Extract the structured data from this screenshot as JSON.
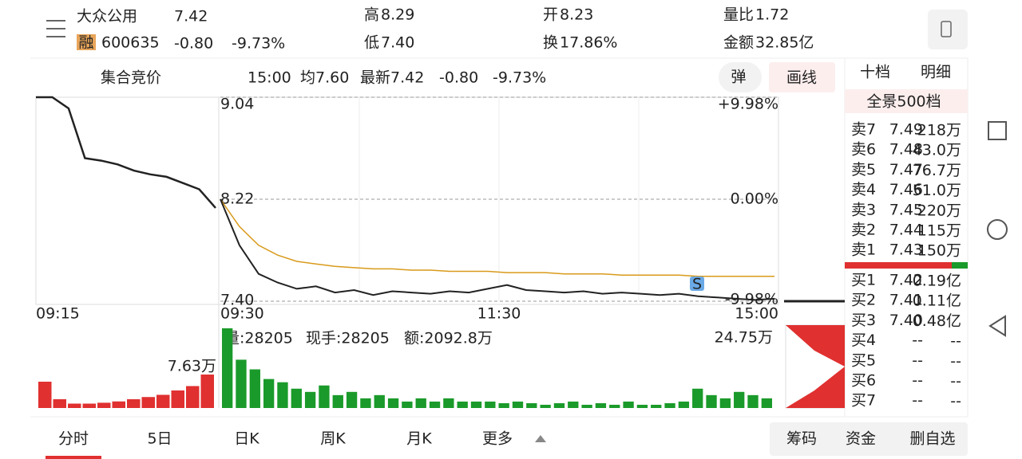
{
  "header": {
    "name": "大众公用",
    "badge": "融",
    "code": "600635",
    "price": "7.42",
    "change": "-0.80",
    "change_pct": "-9.73%",
    "stats": [
      {
        "label": "高",
        "value": "8.29"
      },
      {
        "label": "开",
        "value": "8.23"
      },
      {
        "label": "量比",
        "value": "1.72"
      },
      {
        "label": "低",
        "value": "7.40"
      },
      {
        "label": "换",
        "value": "17.86%"
      },
      {
        "label": "金额",
        "value": "32.85亿"
      }
    ]
  },
  "toolbar": {
    "auction": "集合竞价",
    "time": "15:00",
    "avg": "均7.60",
    "latest": "最新7.42",
    "change": "-0.80",
    "change_pct": "-9.73%",
    "popup": "弹",
    "draw": "画线"
  },
  "chart": {
    "ylim": [
      7.4,
      9.04
    ],
    "yticks": [
      9.04,
      8.22,
      {
        "value": 7.4,
        "label": "7.40"
      }
    ],
    "y2lim": [
      -9.98,
      9.98
    ],
    "y2ticks": [
      {
        "value": 9.98,
        "label": "+9.98%"
      },
      {
        "value": 0,
        "label": "0.00%"
      },
      {
        "value": -9.98,
        "label": "-9.98%"
      }
    ],
    "times": [
      "09:15",
      "09:30",
      "11:30",
      "15:00"
    ],
    "marker": "S",
    "auction_values": [
      9.04,
      9.04,
      8.95,
      8.55,
      8.53,
      8.5,
      8.45,
      8.42,
      8.4,
      8.35,
      8.3,
      8.15
    ],
    "price": {
      "color": "#222222",
      "values": [
        8.22,
        7.85,
        7.62,
        7.55,
        7.5,
        7.52,
        7.47,
        7.49,
        7.45,
        7.48,
        7.47,
        7.46,
        7.48,
        7.47,
        7.5,
        7.53,
        7.49,
        7.48,
        7.47,
        7.48,
        7.46,
        7.47,
        7.46,
        7.45,
        7.46,
        7.44,
        7.43,
        7.42,
        7.41,
        7.42
      ]
    },
    "avg": {
      "color": "#d99a1a",
      "values": [
        8.22,
        8.0,
        7.85,
        7.77,
        7.72,
        7.7,
        7.68,
        7.67,
        7.66,
        7.66,
        7.65,
        7.65,
        7.64,
        7.64,
        7.64,
        7.63,
        7.63,
        7.63,
        7.62,
        7.62,
        7.62,
        7.61,
        7.61,
        7.61,
        7.61,
        7.6,
        7.6,
        7.6,
        7.6,
        7.6
      ]
    },
    "volume": {
      "summary": "量:28205",
      "hand": "现手:28205",
      "amount": "额:2092.8万",
      "ylim": [
        0,
        24.75
      ],
      "yticks": [
        {
          "value": 24.75,
          "label": "24.75万"
        }
      ],
      "color": "#1a9a2a",
      "values": [
        24.75,
        15,
        12,
        9,
        8,
        6,
        5,
        7,
        4,
        5,
        3,
        4,
        3,
        2,
        3,
        2,
        3,
        2,
        2,
        2,
        1.5,
        2,
        1.5,
        1,
        1.5,
        2,
        1,
        1.5,
        1,
        2,
        1,
        1,
        1.5,
        2,
        6,
        4,
        3,
        5,
        4,
        3
      ]
    },
    "auction_volume": {
      "ylim": [
        0,
        7.63
      ],
      "yticks": [
        {
          "value": 7.63,
          "label": "7.63万"
        }
      ],
      "color": "#e03030",
      "values": [
        6,
        2,
        1,
        1,
        1.2,
        1.5,
        2,
        2.5,
        3,
        4,
        5,
        7.63
      ]
    }
  },
  "orderbook": {
    "tabs": [
      "十档",
      "明细"
    ],
    "panorama": "全景500档",
    "sells": [
      {
        "label": "卖7",
        "price": "7.49",
        "vol": "218万"
      },
      {
        "label": "卖6",
        "price": "7.48",
        "vol": "43.0万"
      },
      {
        "label": "卖5",
        "price": "7.47",
        "vol": "76.7万"
      },
      {
        "label": "卖4",
        "price": "7.46",
        "vol": "51.0万"
      },
      {
        "label": "卖3",
        "price": "7.45",
        "vol": "220万"
      },
      {
        "label": "卖2",
        "price": "7.44",
        "vol": "115万"
      },
      {
        "label": "卖1",
        "price": "7.43",
        "vol": "150万"
      }
    ],
    "buys": [
      {
        "label": "买1",
        "price": "7.42",
        "vol": "0.19亿"
      },
      {
        "label": "买2",
        "price": "7.41",
        "vol": "0.11亿"
      },
      {
        "label": "买3",
        "price": "7.40",
        "vol": "0.48亿"
      },
      {
        "label": "买4",
        "price": "--",
        "vol": "--"
      },
      {
        "label": "买5",
        "price": "--",
        "vol": "--"
      },
      {
        "label": "买6",
        "price": "--",
        "vol": "--"
      },
      {
        "label": "买7",
        "price": "--",
        "vol": "--"
      }
    ]
  },
  "tabs": [
    "分时",
    "5日",
    "日K",
    "周K",
    "月K",
    "更多"
  ],
  "buttons": [
    "筹码",
    "资金",
    "删自选"
  ]
}
